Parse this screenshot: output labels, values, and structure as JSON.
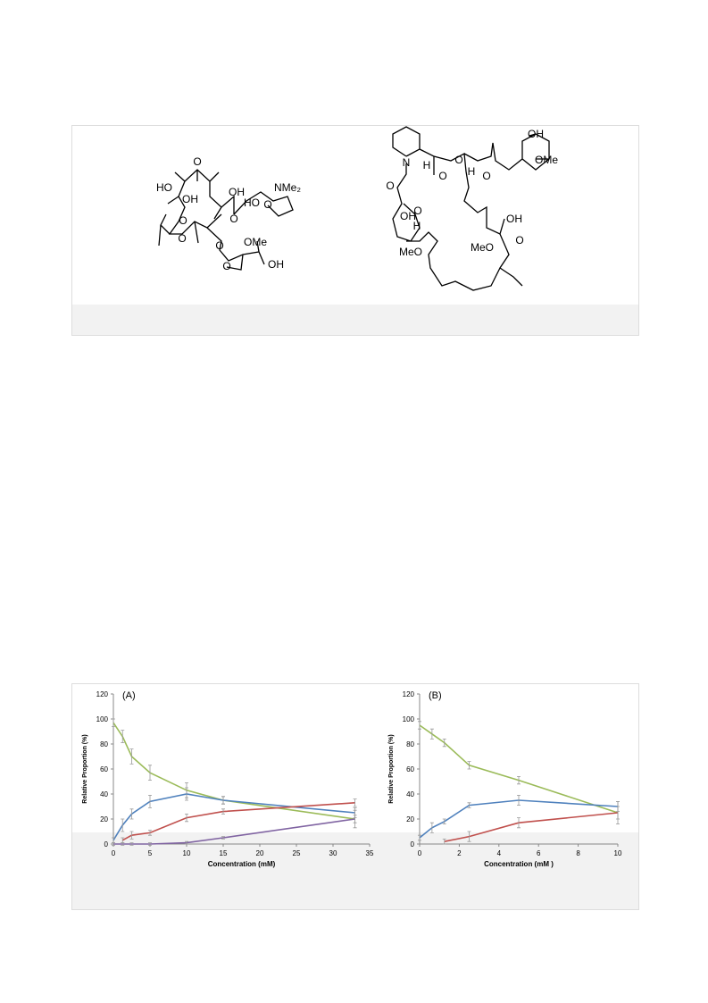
{
  "structures": {
    "left": [
      "O",
      "HO",
      "OH",
      "OH",
      "NMe₂",
      "HO",
      "O",
      "O",
      "O",
      "O",
      "OMe",
      "O",
      "O",
      "OH"
    ],
    "right": [
      "OH",
      "OMe",
      "N",
      "H",
      "O",
      "O",
      "H",
      "O",
      "O",
      "OH",
      "O",
      "H",
      "O",
      "OH",
      "MeO",
      "MeO"
    ]
  },
  "chart_data": [
    {
      "type": "line",
      "title": "(A)",
      "x_label": "Concentration (mM)",
      "y_label": "Relative Proportion (%)",
      "x": [
        0,
        1.25,
        2.5,
        5,
        10,
        15,
        33
      ],
      "xlim": [
        0,
        35
      ],
      "ylim": [
        0,
        120
      ],
      "xticks": [
        0,
        5,
        10,
        15,
        20,
        25,
        30,
        35
      ],
      "yticks": [
        0,
        20,
        40,
        60,
        80,
        100,
        120
      ],
      "series": [
        {
          "color": "#9bbb59",
          "values": [
            97,
            86,
            70,
            57,
            43,
            35,
            20
          ],
          "errors": [
            3,
            5,
            6,
            6,
            6,
            3,
            3
          ]
        },
        {
          "color": "#4f81bd",
          "values": [
            3,
            15,
            24,
            34,
            40,
            35,
            25
          ],
          "errors": [
            2,
            5,
            4,
            5,
            5,
            3,
            4
          ]
        },
        {
          "color": "#c0504d",
          "values": [
            null,
            3,
            7,
            9,
            21,
            26,
            33
          ],
          "errors": [
            null,
            2,
            3,
            2,
            3,
            2,
            3
          ]
        },
        {
          "color": "#8064a2",
          "values": [
            0,
            0,
            0,
            0,
            1,
            5,
            20
          ],
          "errors": [
            1,
            1,
            1,
            1,
            1,
            1,
            7
          ]
        }
      ]
    },
    {
      "type": "line",
      "title": "(B)",
      "x_label": "Concentration (mM )",
      "y_label": "Relative  Proportion (%)",
      "x": [
        0,
        0.625,
        1.25,
        2.5,
        5,
        10
      ],
      "xlim": [
        0,
        10
      ],
      "ylim": [
        0,
        120
      ],
      "xticks": [
        0,
        2,
        4,
        6,
        8,
        10
      ],
      "yticks": [
        0,
        20,
        40,
        60,
        80,
        100,
        120
      ],
      "series": [
        {
          "color": "#9bbb59",
          "values": [
            95,
            88,
            81,
            63,
            51,
            25
          ],
          "errors": [
            3,
            4,
            3,
            3,
            3,
            5
          ]
        },
        {
          "color": "#4f81bd",
          "values": [
            5,
            13,
            18,
            31,
            35,
            30
          ],
          "errors": [
            2,
            4,
            2,
            2,
            4,
            4
          ]
        },
        {
          "color": "#c0504d",
          "values": [
            null,
            null,
            2,
            6,
            17,
            25
          ],
          "errors": [
            null,
            null,
            2,
            4,
            4,
            9
          ]
        }
      ]
    }
  ]
}
